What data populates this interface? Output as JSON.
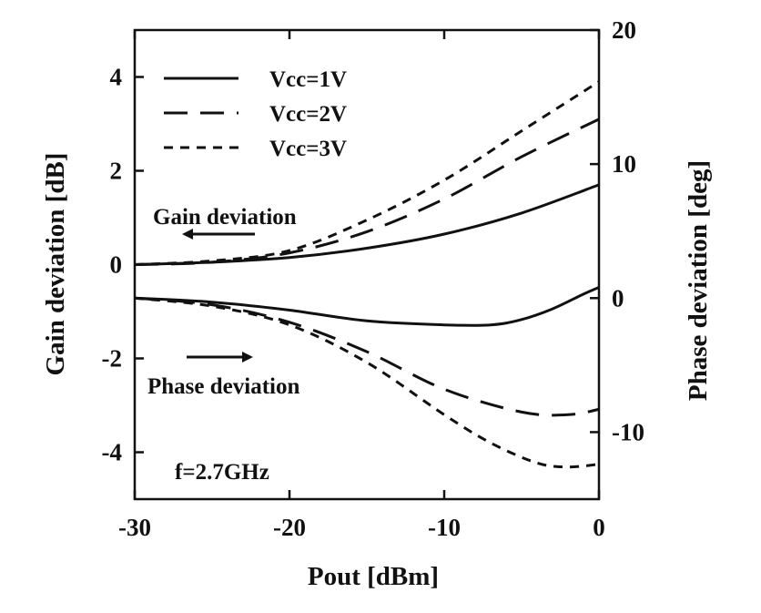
{
  "chart_data": {
    "type": "line",
    "xlabel": "Pout [dBm]",
    "ylabel_left": "Gain deviation [dB]",
    "ylabel_right": "Phase deviation [deg]",
    "xlim": [
      -30,
      0
    ],
    "ylim_left": [
      -5,
      5
    ],
    "ylim_right": [
      -15,
      20
    ],
    "x_ticks": [
      -30,
      -20,
      -10,
      0
    ],
    "x_tick_labels": [
      "-30",
      "-20",
      "-10",
      "0"
    ],
    "y_left_ticks": [
      4,
      2,
      0,
      -2,
      -4
    ],
    "y_left_tick_labels": [
      "4",
      "2",
      "0",
      "-2",
      "-4"
    ],
    "y_right_ticks": [
      20,
      10,
      0,
      -10
    ],
    "y_right_tick_labels": [
      "20",
      "10",
      "0",
      "-10"
    ],
    "grid": false,
    "legend_position": "top-left",
    "series": [
      {
        "name": "Vcc=1V",
        "dash": "solid",
        "gain_x": [
          -30,
          -25,
          -20,
          -15,
          -10,
          -5,
          0
        ],
        "gain_y": [
          0.0,
          0.05,
          0.15,
          0.35,
          0.65,
          1.1,
          1.7
        ],
        "phase_x": [
          -30,
          -25,
          -20,
          -15,
          -10,
          -7,
          -5,
          -3,
          -1,
          0
        ],
        "phase_y": [
          0.0,
          -0.3,
          -0.9,
          -1.7,
          -2.0,
          -2.0,
          -1.6,
          -0.8,
          0.3,
          0.8
        ]
      },
      {
        "name": "Vcc=2V",
        "dash": "long-dash",
        "gain_x": [
          -30,
          -25,
          -20,
          -15,
          -10,
          -5,
          0
        ],
        "gain_y": [
          0.0,
          0.05,
          0.25,
          0.7,
          1.4,
          2.3,
          3.1
        ],
        "phase_x": [
          -30,
          -25,
          -20,
          -15,
          -10,
          -5,
          -2,
          0
        ],
        "phase_y": [
          0.0,
          -0.5,
          -1.8,
          -4.0,
          -6.8,
          -8.5,
          -8.7,
          -8.3
        ]
      },
      {
        "name": "Vcc=3V",
        "dash": "short-dash",
        "gain_x": [
          -30,
          -25,
          -20,
          -15,
          -10,
          -5,
          0
        ],
        "gain_y": [
          0.0,
          0.08,
          0.3,
          0.95,
          1.8,
          2.85,
          3.9
        ],
        "phase_x": [
          -30,
          -25,
          -20,
          -15,
          -10,
          -7,
          -4,
          -2,
          0
        ],
        "phase_y": [
          0.0,
          -0.6,
          -2.0,
          -4.8,
          -8.7,
          -10.8,
          -12.3,
          -12.6,
          -12.4
        ]
      }
    ],
    "annotations": {
      "gain": "Gain deviation",
      "phase": "Phase deviation",
      "freq": "f=2.7GHz"
    }
  }
}
